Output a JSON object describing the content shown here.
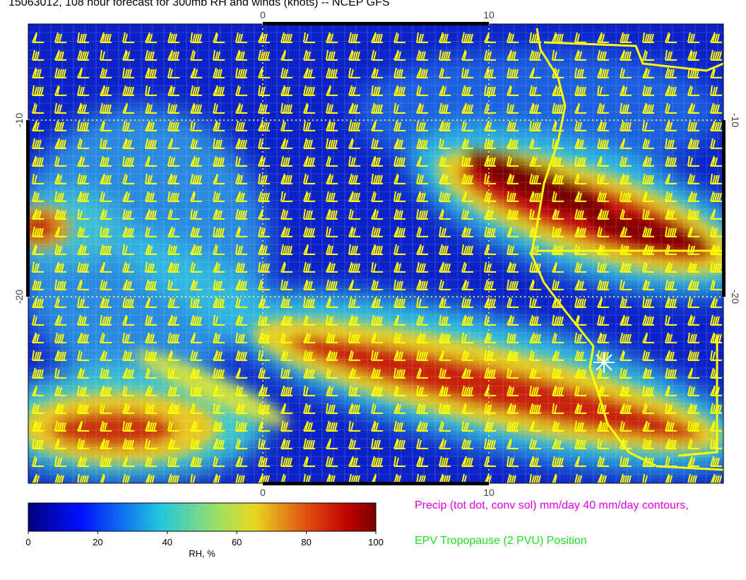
{
  "map": {
    "title": "15063012, 108 hour forecast for 300mb RH and winds (knots) -- NCEP GFS",
    "x_ticks": [
      0,
      10
    ],
    "y_ticks": [
      -10,
      -20
    ],
    "colorbar": {
      "label": "RH, %",
      "range": [
        0,
        100
      ],
      "ticks": [
        0,
        20,
        40,
        60,
        80,
        100
      ]
    },
    "legend": [
      "Precip (tot dot, conv sol) mm/day 40 mm/day contours,",
      "EPV Tropopause (2 PVU) Position"
    ]
  }
}
